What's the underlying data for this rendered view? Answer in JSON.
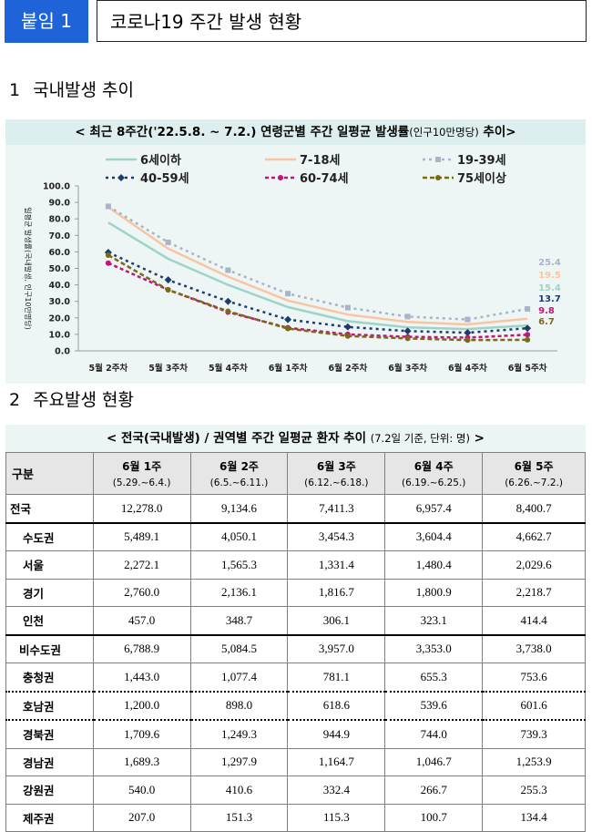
{
  "header": {
    "badge": "붙임 1",
    "title": "코로나19 주간 발생 현황"
  },
  "section1": {
    "num": "1",
    "title": "국내발생 추이"
  },
  "section2": {
    "num": "2",
    "title": "주요발생 현황"
  },
  "chart_data": {
    "type": "line",
    "title": "< 최근 8주간('22.5.8. ~ 7.2.) 연령군별 주간 일평균 발생률",
    "title_unit": "(인구10만명당)",
    "title_suffix": " 추이>",
    "ylabel": "일평균 발생률(국내발생, 인구10만명당)",
    "ylim": [
      0,
      100
    ],
    "yticks": [
      "100.0",
      "90.0",
      "80.0",
      "70.0",
      "60.0",
      "50.0",
      "40.0",
      "30.0",
      "20.0",
      "10.0",
      "0.0"
    ],
    "categories": [
      "5월 2주차",
      "5월 3주차",
      "5월 4주차",
      "6월 1주차",
      "6월 2주차",
      "6월 3주차",
      "6월 4주차",
      "6월 5주차"
    ],
    "legend": "top",
    "series": [
      {
        "name": "6세이하",
        "color": "#9fd3c7",
        "dash": "",
        "marker": "none",
        "values": [
          77.8,
          55.8,
          40.0,
          26.5,
          18.0,
          14.2,
          13.2,
          15.4
        ],
        "end_label": "15.4"
      },
      {
        "name": "7-18세",
        "color": "#f8c5a1",
        "dash": "",
        "marker": "none",
        "values": [
          87.0,
          62.0,
          45.0,
          30.5,
          22.0,
          17.5,
          16.0,
          19.5
        ],
        "end_label": "19.5"
      },
      {
        "name": "19-39세",
        "color": "#a9b4c7",
        "dash": "3,4",
        "marker": "square",
        "values": [
          87.6,
          65.8,
          48.9,
          34.7,
          26.2,
          20.8,
          19.0,
          25.4
        ],
        "end_label": "25.4"
      },
      {
        "name": "40-59세",
        "color": "#1f3b6e",
        "dash": "3,4",
        "marker": "diamond",
        "values": [
          59.7,
          43.0,
          30.0,
          19.0,
          14.5,
          12.0,
          11.0,
          13.7
        ],
        "end_label": "13.7"
      },
      {
        "name": "60-74세",
        "color": "#c0157a",
        "dash": "4,3",
        "marker": "circle",
        "values": [
          53.2,
          37.0,
          23.5,
          14.0,
          10.0,
          8.5,
          8.0,
          9.8
        ],
        "end_label": "9.8"
      },
      {
        "name": "75세이상",
        "color": "#7a6a17",
        "dash": "5,3",
        "marker": "circle",
        "values": [
          58.0,
          37.0,
          24.0,
          13.5,
          9.0,
          7.5,
          6.5,
          6.7
        ],
        "end_label": "6.7"
      }
    ]
  },
  "table": {
    "title": "< 전국(국내발생) / 권역별 주간 일평균 환자 추이",
    "title_note": "(7.2일 기준, 단위: 명)",
    "title_suffix": " >",
    "corner": "구분",
    "columns": [
      {
        "label": "6월  1주",
        "range": "(5.29.~6.4.)"
      },
      {
        "label": "6월  2주",
        "range": "(6.5.~6.11.)"
      },
      {
        "label": "6월  3주",
        "range": "(6.12.~6.18.)"
      },
      {
        "label": "6월  4주",
        "range": "(6.19.~6.25.)"
      },
      {
        "label": "6월  5주",
        "range": "(6.26.~7.2.)"
      }
    ],
    "rows": [
      {
        "label": "전국",
        "values": [
          "12,278.0",
          "9,134.6",
          "7,411.3",
          "6,957.4",
          "8,400.7"
        ]
      },
      {
        "label": "수도권",
        "values": [
          "5,489.1",
          "4,050.1",
          "3,454.3",
          "3,604.4",
          "4,662.7"
        ]
      },
      {
        "label": "서울",
        "values": [
          "2,272.1",
          "1,565.3",
          "1,331.4",
          "1,480.4",
          "2,029.6"
        ]
      },
      {
        "label": "경기",
        "values": [
          "2,760.0",
          "2,136.1",
          "1,816.7",
          "1,800.9",
          "2,218.7"
        ]
      },
      {
        "label": "인천",
        "values": [
          "457.0",
          "348.7",
          "306.1",
          "323.1",
          "414.4"
        ]
      },
      {
        "label": "비수도권",
        "values": [
          "6,788.9",
          "5,084.5",
          "3,957.0",
          "3,353.0",
          "3,738.0"
        ]
      },
      {
        "label": "충청권",
        "values": [
          "1,443.0",
          "1,077.4",
          "781.1",
          "655.3",
          "753.6"
        ]
      },
      {
        "label": "호남권",
        "values": [
          "1,200.0",
          "898.0",
          "618.6",
          "539.6",
          "601.6"
        ]
      },
      {
        "label": "경북권",
        "values": [
          "1,709.6",
          "1,249.3",
          "944.9",
          "744.0",
          "739.3"
        ]
      },
      {
        "label": "경남권",
        "values": [
          "1,689.3",
          "1,297.9",
          "1,164.7",
          "1,046.7",
          "1,253.9"
        ]
      },
      {
        "label": "강원권",
        "values": [
          "540.0",
          "410.6",
          "332.4",
          "266.7",
          "255.3"
        ]
      },
      {
        "label": "제주권",
        "values": [
          "207.0",
          "151.3",
          "115.3",
          "100.7",
          "134.4"
        ]
      }
    ]
  }
}
